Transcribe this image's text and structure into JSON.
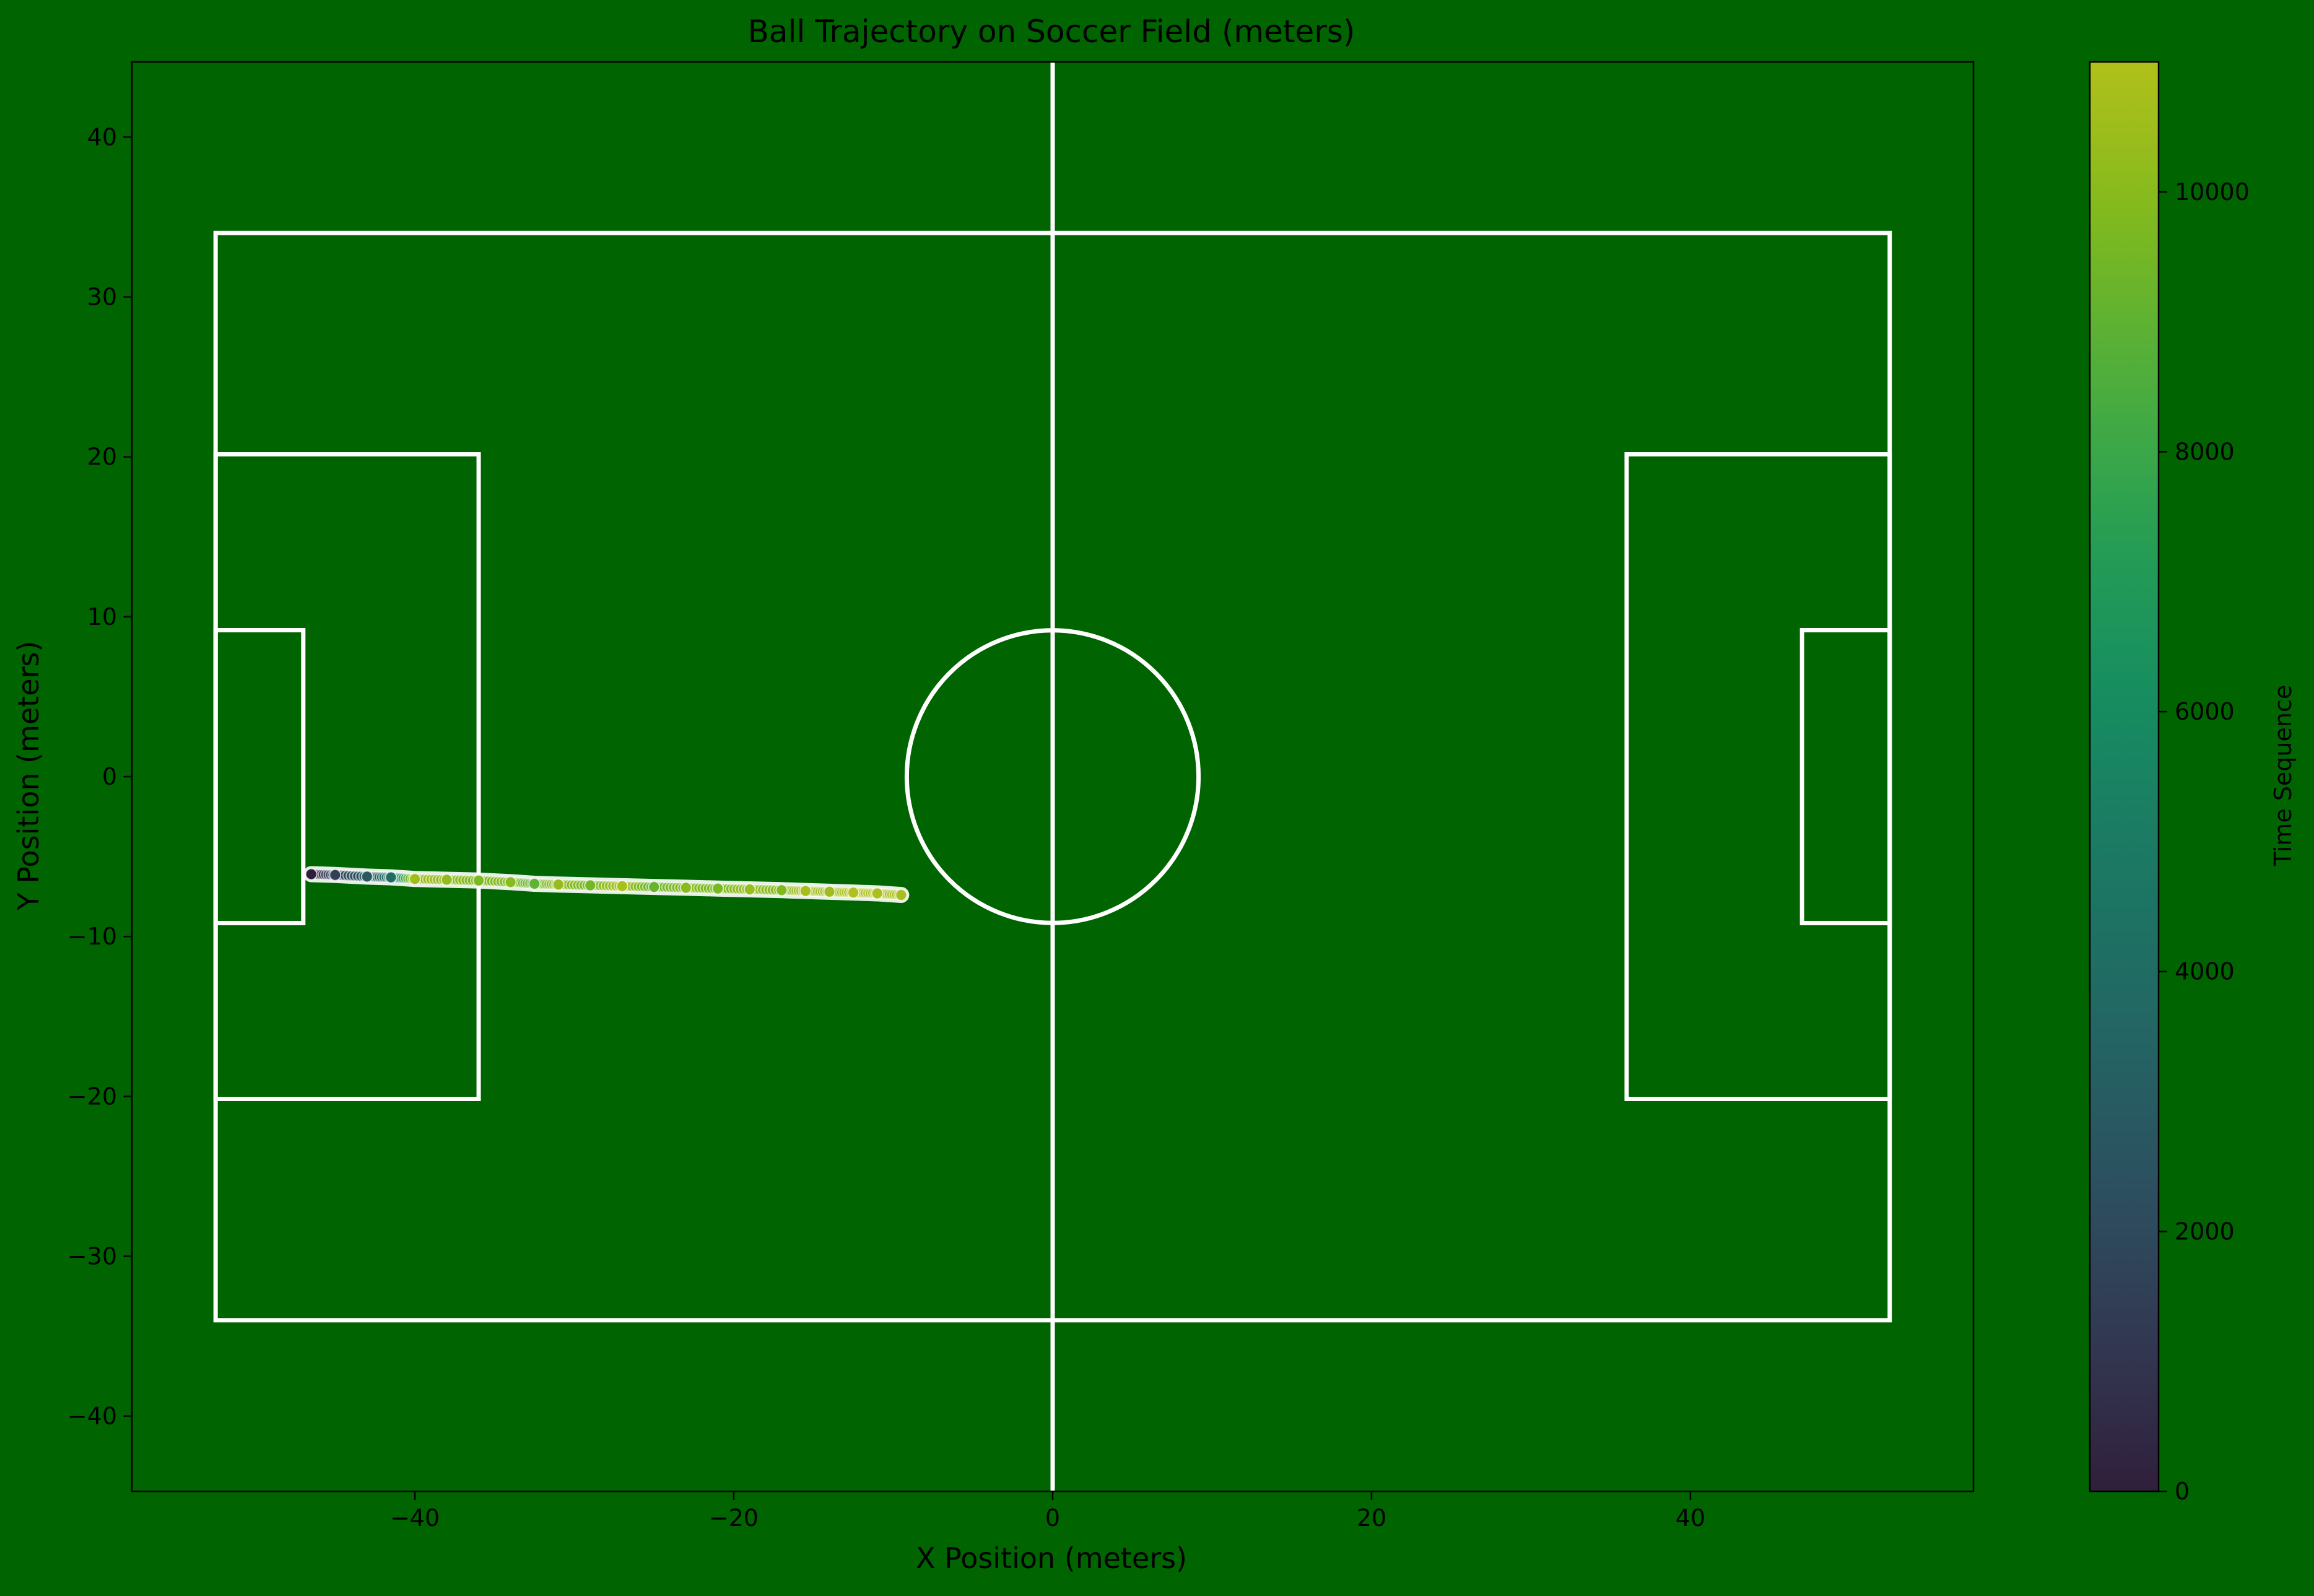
{
  "chart_data": {
    "type": "scatter",
    "title": "Ball Trajectory on Soccer Field (meters)",
    "xlabel": "X Position (meters)",
    "ylabel": "Y Position (meters)",
    "xlim": [
      -57.75,
      57.75
    ],
    "ylim": [
      -44.7,
      44.7
    ],
    "x_ticks": [
      -40,
      -20,
      0,
      20,
      40
    ],
    "x_tick_labels": [
      "−40",
      "−20",
      "0",
      "20",
      "40"
    ],
    "y_ticks": [
      -40,
      -30,
      -20,
      -10,
      0,
      10,
      20,
      30,
      40
    ],
    "y_tick_labels": [
      "−40",
      "−30",
      "−20",
      "−10",
      "0",
      "10",
      "20",
      "30",
      "40"
    ],
    "grid": false,
    "background_color": "#006400",
    "line_color": "#ffffff",
    "colorbar": {
      "label": "Time Sequence",
      "colormap": "viridis",
      "alpha": 0.7,
      "range": [
        0,
        11000
      ],
      "ticks": [
        0,
        2000,
        4000,
        6000,
        8000,
        10000
      ],
      "tick_labels": [
        "0",
        "2000",
        "4000",
        "6000",
        "8000",
        "10000"
      ]
    },
    "field_markings": {
      "pitch": {
        "x": [
          -52.5,
          52.5
        ],
        "y": [
          -34,
          34
        ]
      },
      "halfway_line_x": 0,
      "center_circle": {
        "x": 0,
        "y": 0,
        "r": 9.15
      },
      "penalty_area_left": {
        "x": [
          -52.5,
          -36
        ],
        "y": [
          -20.16,
          20.16
        ]
      },
      "penalty_area_right": {
        "x": [
          36,
          52.5
        ],
        "y": [
          -20.16,
          20.16
        ]
      },
      "goal_area_left": {
        "x": [
          -52.5,
          -47
        ],
        "y": [
          -9.16,
          9.16
        ]
      },
      "goal_area_right": {
        "x": [
          47,
          52.5
        ],
        "y": [
          -9.16,
          9.16
        ]
      }
    },
    "series": [
      {
        "x": [
          -46.5,
          -45.0,
          -43.0,
          -41.5,
          -40.0,
          -38.0,
          -36.0,
          -34.0,
          -32.5,
          -31.0,
          -29.0,
          -27.0,
          -25.0,
          -23.0,
          -21.0,
          -19.0,
          -17.0,
          -15.5,
          -14.0,
          -12.5,
          -11.0,
          -9.5
        ],
        "y": [
          -6.1,
          -6.15,
          -6.25,
          -6.3,
          -6.4,
          -6.45,
          -6.5,
          -6.6,
          -6.7,
          -6.75,
          -6.8,
          -6.85,
          -6.9,
          -6.95,
          -7.0,
          -7.05,
          -7.1,
          -7.15,
          -7.2,
          -7.25,
          -7.3,
          -7.4
        ],
        "t": [
          0,
          1500,
          2800,
          4000,
          10600,
          10200,
          9700,
          10000,
          9000,
          10300,
          9500,
          10800,
          9200,
          10000,
          9600,
          10400,
          9800,
          10700,
          10500,
          11000,
          10900,
          10800
        ]
      }
    ]
  }
}
